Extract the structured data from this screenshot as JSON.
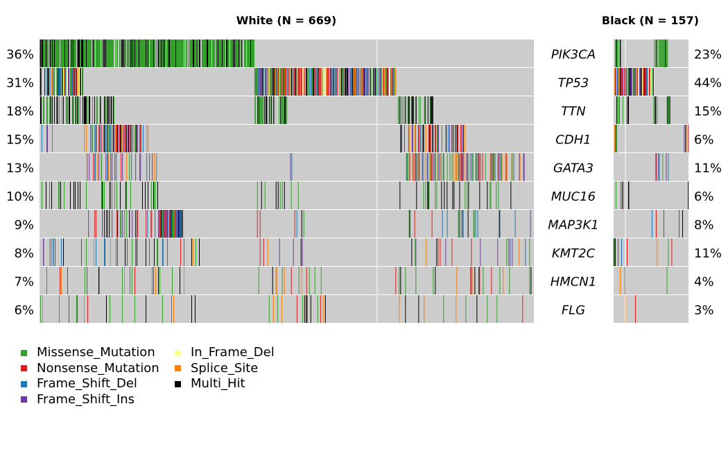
{
  "chart_data": {
    "type": "heatmap",
    "panels": [
      {
        "title": "White (N = 669)",
        "samples": 669,
        "rows": [
          {
            "gene": "PIK3CA",
            "pct": "36%"
          },
          {
            "gene": "TP53",
            "pct": "31%"
          },
          {
            "gene": "TTN",
            "pct": "18%"
          },
          {
            "gene": "CDH1",
            "pct": "15%"
          },
          {
            "gene": "GATA3",
            "pct": "13%"
          },
          {
            "gene": "MUC16",
            "pct": "10%"
          },
          {
            "gene": "MAP3K1",
            "pct": "9%"
          },
          {
            "gene": "KMT2C",
            "pct": "8%"
          },
          {
            "gene": "HMCN1",
            "pct": "7%"
          },
          {
            "gene": "FLG",
            "pct": "6%"
          }
        ]
      },
      {
        "title": "Black (N = 157)",
        "samples": 157,
        "rows": [
          {
            "gene": "PIK3CA",
            "pct": "23%"
          },
          {
            "gene": "TP53",
            "pct": "44%"
          },
          {
            "gene": "TTN",
            "pct": "15%"
          },
          {
            "gene": "CDH1",
            "pct": "6%"
          },
          {
            "gene": "GATA3",
            "pct": "11%"
          },
          {
            "gene": "MUC16",
            "pct": "6%"
          },
          {
            "gene": "MAP3K1",
            "pct": "8%"
          },
          {
            "gene": "KMT2C",
            "pct": "11%"
          },
          {
            "gene": "HMCN1",
            "pct": "4%"
          },
          {
            "gene": "FLG",
            "pct": "3%"
          }
        ]
      }
    ],
    "genes": [
      "PIK3CA",
      "TP53",
      "TTN",
      "CDH1",
      "GATA3",
      "MUC16",
      "MAP3K1",
      "KMT2C",
      "HMCN1",
      "FLG"
    ],
    "background_color": "#CCCCCC",
    "legend": {
      "position": "bottom-left",
      "items": [
        {
          "label": "Missense_Mutation",
          "color": "#33A02C"
        },
        {
          "label": "Nonsense_Mutation",
          "color": "#E31A1C"
        },
        {
          "label": "Frame_Shift_Del",
          "color": "#1F78B4"
        },
        {
          "label": "Frame_Shift_Ins",
          "color": "#6A3D9A"
        },
        {
          "label": "In_Frame_Del",
          "color": "#FFFF99"
        },
        {
          "label": "Splice_Site",
          "color": "#FF7F00"
        },
        {
          "label": "Multi_Hit",
          "color": "#000000"
        }
      ]
    }
  }
}
